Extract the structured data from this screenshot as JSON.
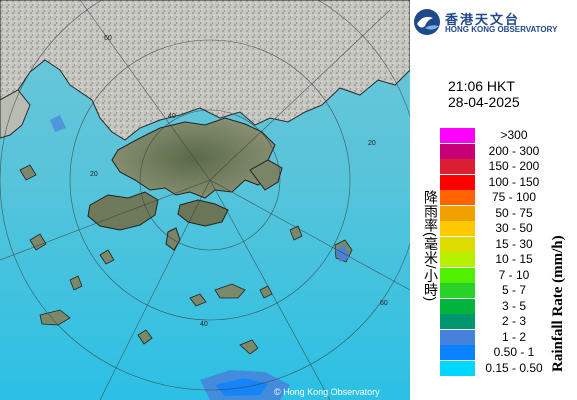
{
  "logo": {
    "name_zh": "香港天文台",
    "name_en": "HONG KONG OBSERVATORY"
  },
  "timestamp": {
    "time": "21:06 HKT",
    "date": "28-04-2025"
  },
  "legend": {
    "title_en": "Rainfall Rate (mm/h)",
    "title_zh": "降雨率(毫米/小時)",
    "items": [
      {
        "label": ">300",
        "color": "#ff00ff"
      },
      {
        "label": "200 - 300",
        "color": "#c80078"
      },
      {
        "label": "150 - 200",
        "color": "#dc1e32"
      },
      {
        "label": "100 - 150",
        "color": "#ff0000"
      },
      {
        "label": "75 - 100",
        "color": "#ff6400"
      },
      {
        "label": "50 - 75",
        "color": "#f0a000"
      },
      {
        "label": "30 - 50",
        "color": "#ffc800"
      },
      {
        "label": "15 - 30",
        "color": "#dcdc00"
      },
      {
        "label": "10 - 15",
        "color": "#b4f000"
      },
      {
        "label": "7 - 10",
        "color": "#50f000"
      },
      {
        "label": "5 - 7",
        "color": "#28d228"
      },
      {
        "label": "3 - 5",
        "color": "#00b43c"
      },
      {
        "label": "2 - 3",
        "color": "#00966e"
      },
      {
        "label": "1 - 2",
        "color": "#4682dc"
      },
      {
        "label": "0.50 - 1",
        "color": "#0a82ff"
      },
      {
        "label": "0.15 - 0.50",
        "color": "#00d7ff"
      }
    ]
  },
  "map": {
    "range_labels": [
      "60",
      "40",
      "20",
      "20",
      "60",
      "40"
    ],
    "credit": "© Hong Kong Observatory"
  }
}
